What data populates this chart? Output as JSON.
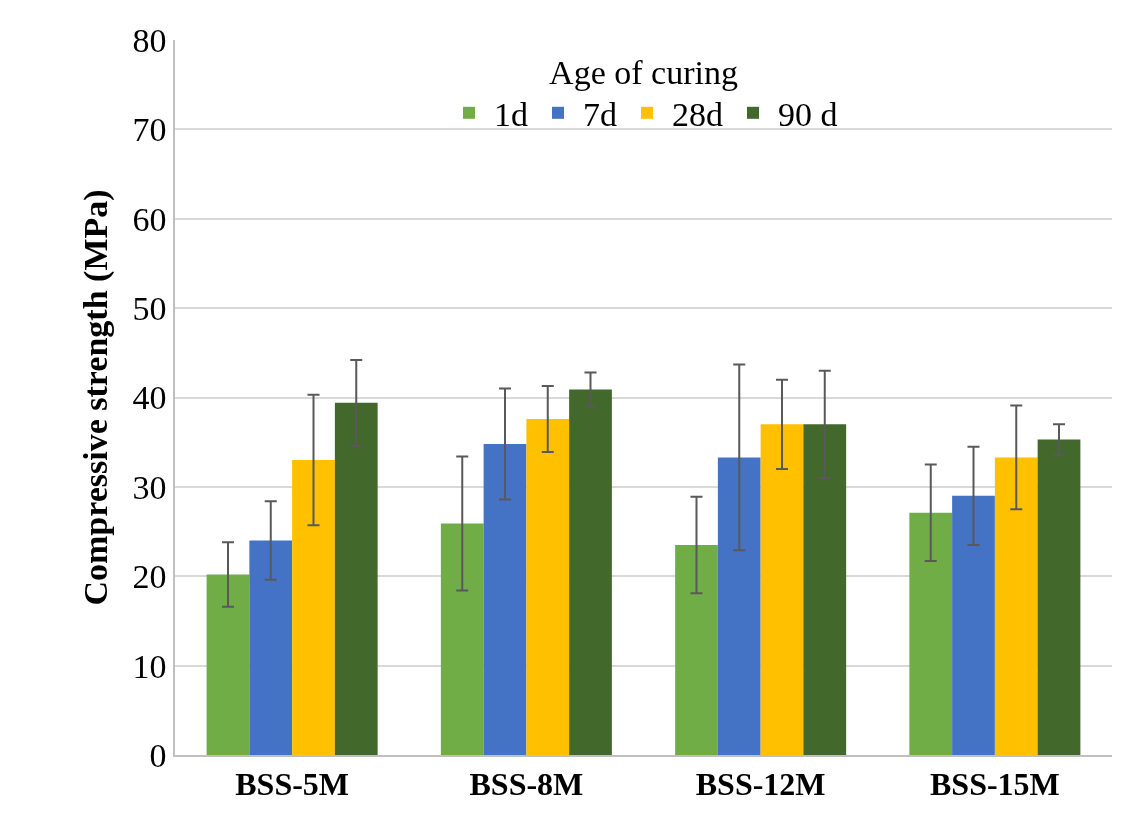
{
  "chart_data": {
    "type": "bar",
    "ylabel": "Compressive strength (MPa)",
    "legend_title": "Age of curing",
    "categories": [
      "BSS-5M",
      "BSS-8M",
      "BSS-12M",
      "BSS-15M"
    ],
    "series": [
      {
        "name": "1d",
        "color": "#70ad47",
        "values": [
          20.2,
          25.9,
          23.5,
          27.1
        ],
        "errors": [
          3.6,
          7.5,
          5.4,
          5.4
        ]
      },
      {
        "name": "7d",
        "color": "#4472c4",
        "values": [
          24.0,
          34.8,
          33.3,
          29.0
        ],
        "errors": [
          4.4,
          6.2,
          10.4,
          5.5
        ]
      },
      {
        "name": "28d",
        "color": "#ffc000",
        "values": [
          33.0,
          37.6,
          37.0,
          33.3
        ],
        "errors": [
          7.3,
          3.7,
          5.0,
          5.8
        ]
      },
      {
        "name": "90 d",
        "color": "#43682b",
        "values": [
          39.4,
          40.9,
          37.0,
          35.3
        ],
        "errors": [
          4.8,
          1.9,
          6.0,
          1.7
        ]
      }
    ],
    "ylim": [
      0,
      80
    ],
    "yticks": [
      0,
      10,
      20,
      30,
      40,
      50,
      60,
      70,
      80
    ],
    "grid": "y",
    "legend": "top"
  }
}
